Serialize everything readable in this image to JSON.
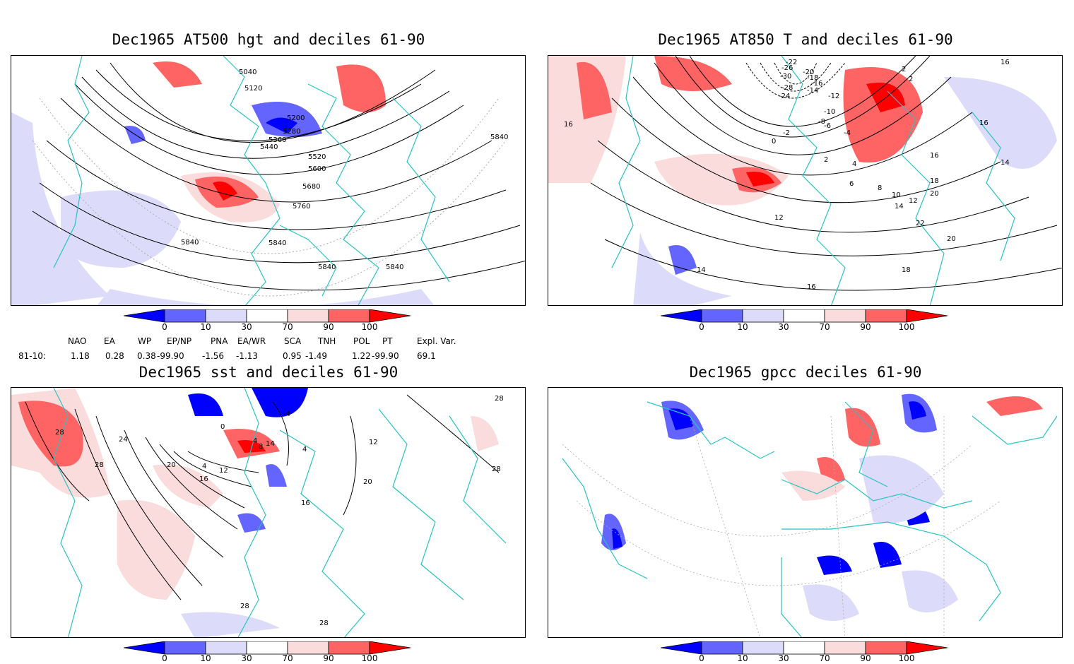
{
  "panels": [
    {
      "title": "Dec1965 AT500 hgt and deciles 61-90",
      "contour_labels": [
        "5040",
        "5120",
        "5200",
        "5280",
        "5360",
        "5440",
        "5520",
        "5600",
        "5680",
        "5760",
        "5840",
        "5840",
        "5840",
        "5840",
        "5840"
      ]
    },
    {
      "title": "Dec1965 AT850 T and deciles 61-90",
      "contour_labels": [
        "-22",
        "-26",
        "-20",
        "-30",
        "-18",
        "-16",
        "-28",
        "-14",
        "-24",
        "-12",
        "-10",
        "-8",
        "-2",
        "-6",
        "-4",
        "0",
        "2",
        "4",
        "2",
        "2",
        "6",
        "8",
        "10",
        "12",
        "14",
        "12",
        "16",
        "16",
        "18",
        "20",
        "22",
        "20",
        "14",
        "16",
        "18",
        "14",
        "16",
        "16"
      ]
    },
    {
      "title": "Dec1965 sst and deciles 61-90",
      "contour_labels": [
        "28",
        "24",
        "28",
        "20",
        "16",
        "12",
        "4",
        "0",
        "4",
        "8",
        "14",
        "4",
        "-4",
        "16",
        "20",
        "12",
        "28",
        "28",
        "28",
        "28"
      ]
    },
    {
      "title": "Dec1965 gpcc deciles 61-90",
      "contour_labels": []
    }
  ],
  "colorbar": {
    "labels": [
      "0",
      "10",
      "30",
      "70",
      "90",
      "100"
    ],
    "colors": [
      "#0000ff",
      "#6464ff",
      "#dcdcfa",
      "#ffffff",
      "#fadcdc",
      "#ff6464",
      "#ff0000"
    ]
  },
  "indices": {
    "names": [
      "NAO",
      "EA",
      "WP",
      "EP/NP",
      "PNA",
      "EA/WR",
      "SCA",
      "TNH",
      "POL",
      "PT",
      "Expl. Var."
    ],
    "row_label": "81-10:",
    "values": [
      "1.18",
      "0.28",
      "0.38",
      "-99.90",
      "-1.56",
      "-1.13",
      "0.95",
      "-1.49",
      "1.22",
      "-99.90",
      "69.1"
    ]
  },
  "colors": {
    "coast": "#28c3c3",
    "contour": "#000000"
  }
}
